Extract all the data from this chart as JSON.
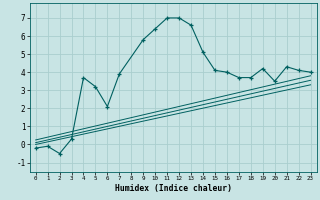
{
  "xlabel": "Humidex (Indice chaleur)",
  "ylabel": "",
  "background_color": "#c8e4e4",
  "grid_color": "#aacece",
  "line_color": "#006060",
  "xlim": [
    -0.5,
    23.5
  ],
  "ylim": [
    -1.5,
    7.8
  ],
  "xticks": [
    0,
    1,
    2,
    3,
    4,
    5,
    6,
    7,
    8,
    9,
    10,
    11,
    12,
    13,
    14,
    15,
    16,
    17,
    18,
    19,
    20,
    21,
    22,
    23
  ],
  "yticks": [
    -1,
    0,
    1,
    2,
    3,
    4,
    5,
    6,
    7
  ],
  "main_x": [
    0,
    1,
    2,
    3,
    4,
    5,
    6,
    7,
    9,
    10,
    11,
    12,
    13,
    14,
    15,
    16,
    17,
    18,
    19,
    20,
    21,
    22,
    23
  ],
  "main_y": [
    -0.2,
    -0.1,
    -0.5,
    0.3,
    3.7,
    3.2,
    2.1,
    3.9,
    5.8,
    6.4,
    7.0,
    7.0,
    6.6,
    5.1,
    4.1,
    4.0,
    3.7,
    3.7,
    4.2,
    3.5,
    4.3,
    4.1,
    4.0
  ],
  "line1_x": [
    0,
    23
  ],
  "line1_y": [
    0.0,
    3.3
  ],
  "line2_x": [
    0,
    23
  ],
  "line2_y": [
    0.1,
    3.55
  ],
  "line3_x": [
    0,
    23
  ],
  "line3_y": [
    0.25,
    3.8
  ]
}
